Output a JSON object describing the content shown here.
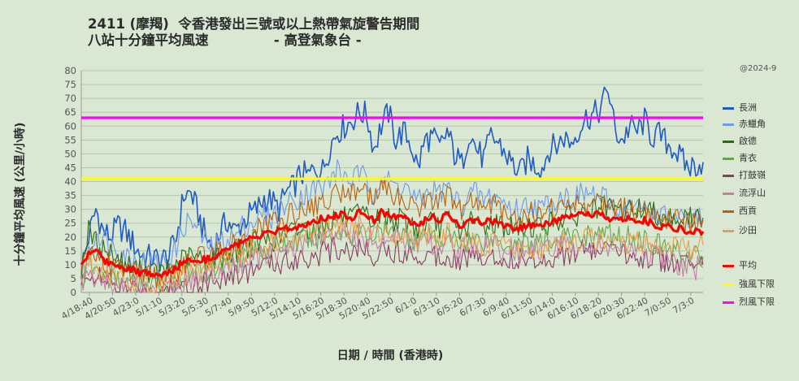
{
  "title_line1": "2411 (摩羯)  令香港發出三號或以上熱帶氣旋警告期間",
  "title_line2": "八站十分鐘平均風速              - 高登氣象台 -",
  "note": "@2024-9",
  "chart_data": {
    "type": "line",
    "xlabel": "日期 / 時間 (香港時)",
    "ylabel": "十分鐘平均風速 (公里/小時)",
    "ylim": [
      0,
      80
    ],
    "yticks": [
      0,
      5,
      10,
      15,
      20,
      25,
      30,
      35,
      40,
      45,
      50,
      55,
      60,
      65,
      70,
      75,
      80
    ],
    "grid": true,
    "legend": "right",
    "x_tick_labels": [
      "4/18:40",
      "4/20:50",
      "4/23:0",
      "5/1:10",
      "5/3:20",
      "5/5:30",
      "5/7:40",
      "5/9:50",
      "5/12:0",
      "5/14:10",
      "5/16:20",
      "5/18:30",
      "5/20:40",
      "5/22:50",
      "6/1:0",
      "6/3:10",
      "6/5:20",
      "6/7:30",
      "6/9:40",
      "6/11:50",
      "6/14:0",
      "6/16:10",
      "6/18:20",
      "6/20:30",
      "6/22:40",
      "7/0:50",
      "7/3:0"
    ],
    "series": [
      {
        "name": "長洲",
        "color": "#1f5bc4",
        "width": 1.6,
        "values": [
          8,
          20,
          30,
          22,
          20,
          24,
          22,
          18,
          14,
          13,
          12,
          12,
          13,
          20,
          35,
          36,
          28,
          20,
          16,
          22,
          26,
          22,
          25,
          28,
          30,
          34,
          33,
          30,
          36,
          38,
          43,
          42,
          45,
          44,
          53,
          58,
          60,
          62,
          65,
          64,
          52,
          60,
          65,
          55,
          58,
          54,
          45,
          55,
          56,
          52,
          58,
          50,
          46,
          58,
          52,
          48,
          56,
          54,
          50,
          46,
          43,
          48,
          46,
          45,
          52,
          53,
          56,
          54,
          59,
          63,
          64,
          66,
          74,
          58,
          55,
          60,
          58,
          62,
          56,
          57,
          54,
          52,
          48,
          45,
          46,
          47
        ]
      },
      {
        "name": "赤鱲角",
        "color": "#6f9ae6",
        "width": 1.1,
        "values": [
          5,
          14,
          22,
          20,
          17,
          16,
          14,
          12,
          11,
          11,
          10,
          11,
          13,
          16,
          24,
          26,
          22,
          18,
          16,
          18,
          20,
          20,
          24,
          25,
          26,
          28,
          27,
          30,
          32,
          33,
          35,
          36,
          38,
          37,
          41,
          44,
          42,
          40,
          43,
          40,
          36,
          42,
          40,
          38,
          39,
          36,
          32,
          35,
          37,
          36,
          38,
          34,
          31,
          35,
          36,
          33,
          35,
          34,
          32,
          30,
          30,
          32,
          31,
          30,
          33,
          34,
          35,
          34,
          35,
          36,
          35,
          34,
          33,
          30,
          29,
          31,
          30,
          31,
          29,
          28,
          27,
          27,
          26,
          25,
          26,
          26
        ]
      },
      {
        "name": "啟德",
        "color": "#2e6b15",
        "width": 1.1,
        "values": [
          10,
          22,
          18,
          16,
          14,
          12,
          10,
          9,
          8,
          8,
          7,
          7,
          8,
          10,
          12,
          13,
          12,
          12,
          12,
          13,
          14,
          15,
          16,
          17,
          18,
          19,
          19,
          20,
          21,
          22,
          23,
          23,
          24,
          24,
          26,
          27,
          27,
          26,
          28,
          27,
          25,
          28,
          27,
          26,
          26,
          25,
          23,
          25,
          25,
          24,
          26,
          24,
          22,
          25,
          25,
          24,
          25,
          25,
          24,
          23,
          23,
          24,
          24,
          24,
          25,
          26,
          27,
          27,
          28,
          29,
          30,
          30,
          30,
          29,
          29,
          30,
          30,
          30,
          29,
          28,
          28,
          27,
          27,
          27,
          27,
          27
        ]
      },
      {
        "name": "青衣",
        "color": "#62a84a",
        "width": 1.1,
        "values": [
          4,
          10,
          8,
          6,
          5,
          4,
          3,
          3,
          2,
          2,
          2,
          2,
          3,
          4,
          5,
          6,
          7,
          8,
          9,
          10,
          11,
          12,
          13,
          14,
          15,
          16,
          16,
          17,
          17,
          18,
          19,
          19,
          20,
          20,
          21,
          22,
          22,
          21,
          22,
          21,
          20,
          22,
          21,
          20,
          21,
          20,
          19,
          20,
          20,
          19,
          20,
          19,
          18,
          19,
          19,
          19,
          19,
          19,
          18,
          18,
          18,
          18,
          18,
          18,
          19,
          19,
          20,
          20,
          20,
          21,
          21,
          21,
          21,
          20,
          20,
          20,
          19,
          19,
          18,
          17,
          16,
          15,
          14,
          13,
          13,
          13
        ]
      },
      {
        "name": "打鼓嶺",
        "color": "#8c3b63",
        "width": 1.1,
        "values": [
          2,
          8,
          6,
          4,
          3,
          2,
          2,
          1,
          1,
          1,
          1,
          1,
          1,
          2,
          3,
          3,
          4,
          4,
          5,
          5,
          6,
          6,
          7,
          8,
          9,
          10,
          10,
          11,
          11,
          12,
          13,
          13,
          14,
          14,
          15,
          16,
          16,
          15,
          16,
          15,
          14,
          16,
          15,
          14,
          15,
          14,
          13,
          14,
          14,
          13,
          14,
          13,
          12,
          13,
          13,
          13,
          13,
          13,
          12,
          12,
          12,
          12,
          12,
          12,
          13,
          13,
          14,
          14,
          14,
          15,
          15,
          15,
          15,
          14,
          14,
          14,
          13,
          13,
          12,
          12,
          11,
          11,
          10,
          10,
          10,
          10
        ]
      },
      {
        "name": "流浮山",
        "color": "#c57fa6",
        "width": 1.1,
        "values": [
          3,
          6,
          5,
          4,
          3,
          3,
          2,
          2,
          2,
          2,
          2,
          2,
          2,
          3,
          4,
          5,
          5,
          6,
          6,
          7,
          8,
          9,
          10,
          11,
          12,
          13,
          14,
          15,
          15,
          16,
          17,
          18,
          19,
          19,
          20,
          21,
          21,
          20,
          21,
          20,
          19,
          20,
          20,
          19,
          19,
          18,
          17,
          18,
          18,
          17,
          18,
          17,
          16,
          17,
          17,
          16,
          17,
          16,
          16,
          15,
          15,
          15,
          15,
          15,
          16,
          16,
          16,
          16,
          17,
          17,
          17,
          17,
          16,
          16,
          15,
          15,
          14,
          14,
          13,
          12,
          12,
          11,
          10,
          10,
          9,
          9
        ]
      },
      {
        "name": "西貢",
        "color": "#b7620f",
        "width": 1.1,
        "values": [
          6,
          16,
          14,
          12,
          10,
          9,
          8,
          7,
          6,
          6,
          5,
          5,
          6,
          8,
          10,
          11,
          12,
          13,
          14,
          15,
          16,
          17,
          18,
          20,
          22,
          24,
          25,
          26,
          27,
          28,
          30,
          31,
          32,
          32,
          34,
          36,
          37,
          36,
          38,
          37,
          33,
          37,
          36,
          34,
          35,
          33,
          30,
          33,
          34,
          32,
          35,
          32,
          29,
          32,
          33,
          31,
          32,
          31,
          29,
          28,
          28,
          29,
          29,
          28,
          30,
          31,
          31,
          31,
          32,
          32,
          32,
          32,
          31,
          30,
          30,
          30,
          29,
          29,
          28,
          27,
          27,
          26,
          26,
          25,
          26,
          26
        ]
      },
      {
        "name": "沙田",
        "color": "#e6a04d",
        "width": 1.1,
        "values": [
          5,
          12,
          10,
          8,
          7,
          6,
          5,
          4,
          4,
          3,
          3,
          3,
          4,
          5,
          6,
          7,
          8,
          9,
          10,
          11,
          12,
          13,
          14,
          15,
          16,
          17,
          18,
          19,
          19,
          20,
          21,
          22,
          22,
          22,
          23,
          24,
          24,
          23,
          24,
          23,
          21,
          23,
          22,
          21,
          22,
          21,
          19,
          20,
          21,
          20,
          21,
          19,
          17,
          18,
          18,
          17,
          18,
          17,
          16,
          15,
          15,
          16,
          16,
          15,
          16,
          17,
          18,
          18,
          18,
          19,
          19,
          19,
          19,
          18,
          18,
          18,
          18,
          18,
          17,
          17,
          17,
          16,
          16,
          16,
          17,
          17
        ]
      },
      {
        "name": "平均",
        "color": "#ff0000",
        "width": 3.2,
        "values": [
          10,
          14,
          16,
          12,
          10,
          10,
          9,
          8,
          7,
          7,
          6,
          6,
          7,
          9,
          11,
          12,
          12,
          12,
          13,
          14,
          16,
          17,
          18,
          19,
          20,
          21,
          21,
          22,
          23,
          23,
          24,
          25,
          26,
          27,
          27,
          28,
          28,
          27,
          29,
          28,
          26,
          29,
          28,
          27,
          27,
          26,
          24,
          26,
          27,
          26,
          28,
          26,
          24,
          26,
          26,
          25,
          26,
          25,
          24,
          23,
          23,
          24,
          24,
          24,
          25,
          26,
          27,
          27,
          28,
          28,
          28,
          28,
          27,
          26,
          26,
          27,
          26,
          26,
          25,
          24,
          24,
          23,
          23,
          22,
          22,
          22
        ]
      },
      {
        "name": "強風下限",
        "color": "#ffff00",
        "width": 3.2,
        "values": [
          41,
          41
        ]
      },
      {
        "name": "烈風下限",
        "color": "#ff00ff",
        "width": 3.2,
        "values": [
          63,
          63
        ]
      }
    ]
  }
}
